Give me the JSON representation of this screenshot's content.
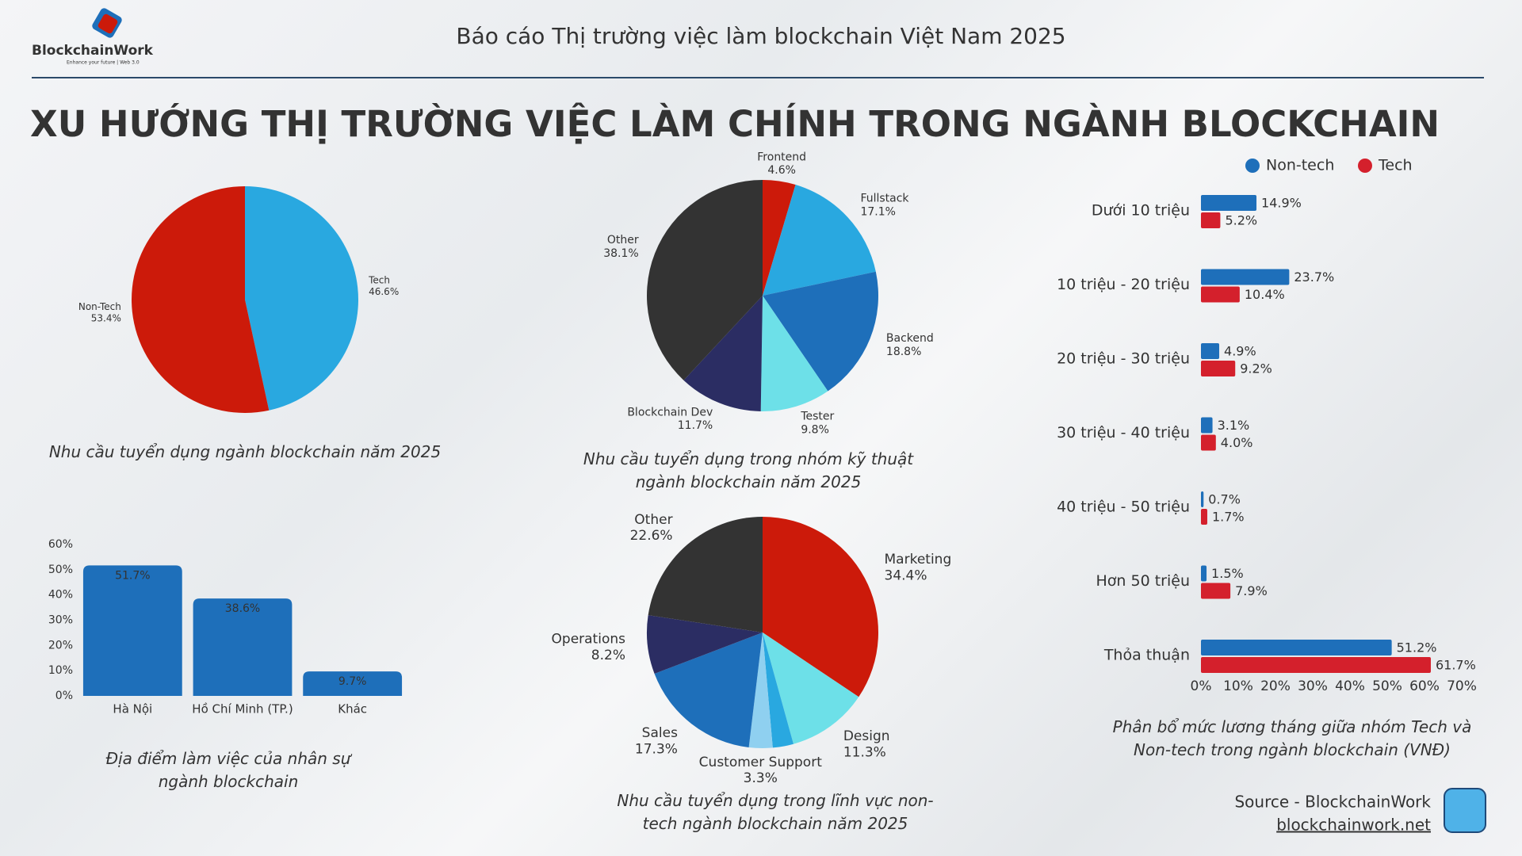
{
  "header": {
    "title": "Báo cáo Thị trường việc làm blockchain Việt Nam 2025",
    "logo_text": "BlockchainWork",
    "logo_tagline": "Enhance your future | Web 3.0"
  },
  "main_title": "XU HƯỚNG THỊ TRƯỜNG VIỆC LÀM CHÍNH TRONG NGÀNH BLOCKCHAIN",
  "chart_data": [
    {
      "type": "pie",
      "title": "Nhu cầu tuyển dụng ngành blockchain năm 2025",
      "categories": [
        "Tech",
        "Non-Tech"
      ],
      "values": [
        46.6,
        53.4
      ],
      "value_labels": [
        "46.6%",
        "53.4%"
      ],
      "colors": [
        "#29a8e0",
        "#cc1a0a"
      ]
    },
    {
      "type": "pie",
      "title": "Nhu cầu tuyển dụng trong nhóm kỹ thuật ngành blockchain năm 2025",
      "categories": [
        "Frontend",
        "Fullstack",
        "Backend",
        "Tester",
        "Blockchain Dev",
        "Other"
      ],
      "values": [
        4.6,
        17.1,
        18.8,
        9.8,
        11.7,
        38.1
      ],
      "value_labels": [
        "4.6%",
        "17.1%",
        "18.8%",
        "9.8%",
        "11.7%",
        "38.1%"
      ],
      "colors": [
        "#cc1a0a",
        "#29a8e0",
        "#1e6fba",
        "#6de0e8",
        "#2b2d63",
        "#333333"
      ]
    },
    {
      "type": "pie",
      "title": "Nhu cầu tuyển dụng trong lĩnh vực non-tech ngành blockchain năm 2025",
      "categories": [
        "Marketing",
        "Design",
        null,
        "Customer Support",
        "Sales",
        "Operations",
        "Other"
      ],
      "values": [
        34.4,
        11.3,
        2.9,
        3.3,
        17.3,
        8.2,
        22.6
      ],
      "value_labels": [
        "34.4%",
        "11.3%",
        null,
        "3.3%",
        "17.3%",
        "8.2%",
        "22.6%"
      ],
      "colors": [
        "#cc1a0a",
        "#6de0e8",
        "#29a8e0",
        "#8fd0f0",
        "#1e6fba",
        "#2b2d63",
        "#333333"
      ]
    },
    {
      "type": "bar",
      "title": "Địa điểm làm việc của nhân sự ngành blockchain",
      "categories": [
        "Hà Nội",
        "Hồ Chí Minh (TP.)",
        "Khác"
      ],
      "values": [
        51.7,
        38.6,
        9.7
      ],
      "value_labels": [
        "51.7%",
        "38.6%",
        "9.7%"
      ],
      "color": "#1e6fba",
      "ylim": [
        0,
        60
      ],
      "yticks": [
        {
          "value": 0,
          "label": "0%"
        },
        {
          "value": 10,
          "label": "10%"
        },
        {
          "value": 20,
          "label": "20%"
        },
        {
          "value": 30,
          "label": "30%"
        },
        {
          "value": 40,
          "label": "40%"
        },
        {
          "value": 50,
          "label": "50%"
        },
        {
          "value": 60,
          "label": "60%"
        }
      ]
    },
    {
      "type": "barh",
      "title": "Phân bổ mức lương tháng giữa nhóm Tech và Non-tech trong ngành blockchain (VNĐ)",
      "categories": [
        "Dưới 10 triệu",
        "10 triệu - 20 triệu",
        "20 triệu - 30 triệu",
        "30 triệu - 40 triệu",
        "40 triệu - 50 triệu",
        "Hơn 50 triệu",
        "Thỏa thuận"
      ],
      "series": [
        {
          "name": "Non-tech",
          "color": "#1e6fba",
          "values": [
            14.9,
            23.7,
            4.9,
            3.1,
            0.7,
            1.5,
            51.2
          ],
          "value_labels": [
            "14.9%",
            "23.7%",
            "4.9%",
            "3.1%",
            "0.7%",
            "1.5%",
            "51.2%"
          ]
        },
        {
          "name": "Tech",
          "color": "#d4202c",
          "values": [
            5.2,
            10.4,
            9.2,
            4.0,
            1.7,
            7.9,
            61.7
          ],
          "value_labels": [
            "5.2%",
            "10.4%",
            "9.2%",
            "4.0%",
            "1.7%",
            "7.9%",
            "61.7%"
          ]
        }
      ],
      "xlim": [
        0,
        70
      ],
      "xticks": [
        {
          "value": 0,
          "label": "0%"
        },
        {
          "value": 10,
          "label": "10%"
        },
        {
          "value": 20,
          "label": "20%"
        },
        {
          "value": 30,
          "label": "30%"
        },
        {
          "value": 40,
          "label": "40%"
        },
        {
          "value": 50,
          "label": "50%"
        },
        {
          "value": 60,
          "label": "60%"
        },
        {
          "value": 70,
          "label": "70%"
        }
      ],
      "legend": "top"
    }
  ],
  "footer": {
    "source": "Source - BlockchainWork",
    "url": "blockchainwork.net"
  }
}
